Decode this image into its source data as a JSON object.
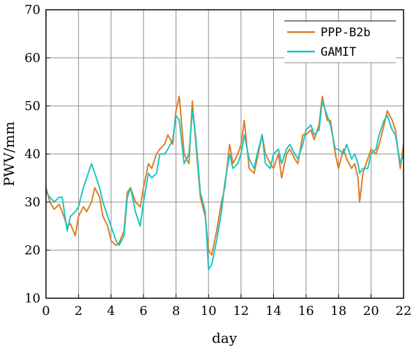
{
  "chart_data": {
    "type": "line",
    "title": "",
    "xlabel": "day",
    "ylabel": "PWV/mm",
    "xlim": [
      0,
      22
    ],
    "ylim": [
      10,
      70
    ],
    "xticks": [
      0,
      2,
      4,
      6,
      8,
      10,
      12,
      14,
      16,
      18,
      20,
      22
    ],
    "yticks": [
      10,
      20,
      30,
      40,
      50,
      60,
      70
    ],
    "grid": true,
    "legend_position": "top-right",
    "series": [
      {
        "name": "PPP-B2b",
        "color": "#e07b22",
        "x": [
          0,
          0.25,
          0.5,
          0.8,
          1.0,
          1.3,
          1.5,
          1.8,
          2.0,
          2.3,
          2.5,
          2.8,
          3.0,
          3.3,
          3.5,
          3.8,
          4.0,
          4.3,
          4.5,
          4.8,
          5.0,
          5.2,
          5.5,
          5.8,
          6.0,
          6.3,
          6.5,
          6.8,
          7.0,
          7.3,
          7.5,
          7.8,
          8.0,
          8.2,
          8.5,
          8.8,
          9.0,
          9.2,
          9.5,
          9.8,
          10.0,
          10.2,
          10.5,
          10.8,
          11.0,
          11.3,
          11.5,
          11.8,
          12.0,
          12.2,
          12.5,
          12.8,
          13.0,
          13.3,
          13.5,
          13.8,
          14.0,
          14.3,
          14.5,
          14.8,
          15.0,
          15.3,
          15.5,
          15.8,
          16.0,
          16.3,
          16.5,
          16.8,
          17.0,
          17.3,
          17.5,
          17.8,
          18.0,
          18.3,
          18.5,
          18.8,
          19.0,
          19.2,
          19.3,
          19.5,
          19.8,
          20.0,
          20.3,
          20.5,
          20.8,
          21.0,
          21.3,
          21.5,
          21.8,
          22.0
        ],
        "values": [
          33,
          30,
          28.5,
          29.5,
          28,
          25,
          25.5,
          23,
          27,
          29,
          28,
          30,
          33,
          31,
          27,
          25,
          22,
          21,
          21.5,
          24,
          32,
          33,
          30,
          29,
          33,
          38,
          37,
          40,
          41,
          42,
          44,
          42,
          49,
          52,
          40,
          38,
          51,
          43,
          31,
          27,
          20,
          19,
          24,
          30,
          33,
          42,
          38,
          40,
          42,
          47,
          37,
          36,
          39,
          44,
          40,
          38,
          37,
          40,
          35,
          40,
          41,
          39,
          38,
          44,
          44,
          45,
          43,
          46,
          52,
          47,
          47,
          40,
          37,
          41,
          39,
          37,
          38,
          35,
          30,
          36,
          39,
          41,
          40,
          42,
          46,
          49,
          47,
          45,
          37,
          42
        ]
      },
      {
        "name": "GAMIT",
        "color": "#1cc5bd",
        "x": [
          0,
          0.25,
          0.5,
          0.8,
          1.0,
          1.3,
          1.5,
          1.8,
          2.0,
          2.3,
          2.5,
          2.8,
          3.0,
          3.3,
          3.5,
          3.8,
          4.0,
          4.3,
          4.5,
          4.8,
          5.0,
          5.2,
          5.5,
          5.8,
          6.0,
          6.3,
          6.5,
          6.8,
          7.0,
          7.3,
          7.5,
          7.8,
          8.0,
          8.2,
          8.5,
          8.8,
          9.0,
          9.2,
          9.5,
          9.8,
          10.0,
          10.2,
          10.5,
          10.8,
          11.0,
          11.3,
          11.5,
          11.8,
          12.0,
          12.2,
          12.5,
          12.8,
          13.0,
          13.3,
          13.5,
          13.8,
          14.0,
          14.3,
          14.5,
          14.8,
          15.0,
          15.3,
          15.5,
          15.8,
          16.0,
          16.3,
          16.5,
          16.8,
          17.0,
          17.3,
          17.5,
          17.8,
          18.0,
          18.3,
          18.5,
          18.8,
          19.0,
          19.2,
          19.3,
          19.5,
          19.8,
          20.0,
          20.3,
          20.5,
          20.8,
          21.0,
          21.3,
          21.5,
          21.8,
          22.0
        ],
        "values": [
          32,
          31,
          30,
          31,
          31,
          24,
          27,
          28,
          29,
          33,
          35,
          38,
          36,
          33,
          30,
          27,
          25,
          22,
          21,
          23,
          31,
          33,
          28,
          25,
          30,
          36,
          35,
          36,
          40,
          40,
          41,
          43,
          48,
          47,
          38,
          40,
          49,
          44,
          32,
          28,
          16,
          17,
          22,
          28,
          34,
          40,
          37,
          38,
          40,
          44,
          39,
          37,
          40,
          44,
          38,
          37,
          40,
          41,
          38,
          41,
          42,
          40,
          39,
          42,
          45,
          46,
          44,
          45,
          51,
          48,
          46,
          41,
          41,
          40,
          42,
          39,
          40,
          38,
          36,
          37,
          37,
          40,
          41,
          44,
          47,
          48,
          45,
          44,
          38,
          40
        ]
      }
    ]
  }
}
